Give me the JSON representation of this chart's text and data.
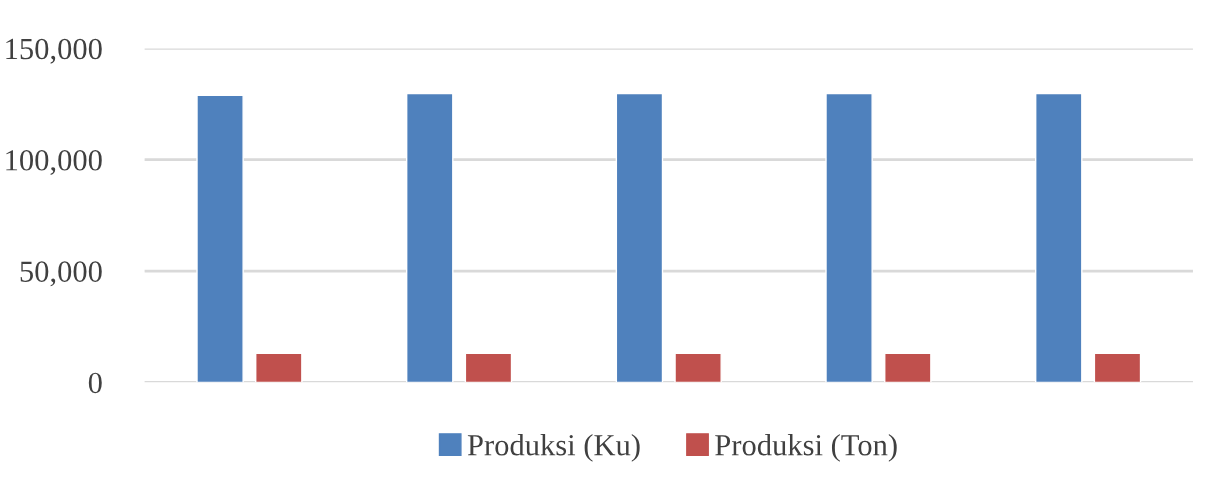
{
  "chart_data": {
    "type": "bar",
    "categories": [
      null,
      null,
      null,
      null,
      null
    ],
    "series": [
      {
        "name": "Produksi (Ku)",
        "color": "#4f81bd",
        "values": [
          128900,
          129700,
          129700,
          129700,
          129700
        ]
      },
      {
        "name": "Produksi (Ton)",
        "color": "#c0504d",
        "values": [
          13000,
          13000,
          13000,
          13000,
          13000
        ]
      }
    ],
    "ylim": [
      0,
      150000
    ],
    "yticks": [
      {
        "value": 0,
        "label": "0"
      },
      {
        "value": 50000,
        "label": "50,000"
      },
      {
        "value": 100000,
        "label": "100,000"
      },
      {
        "value": 150000,
        "label": "150,000"
      }
    ],
    "grid": "y",
    "legend": "bottom"
  }
}
